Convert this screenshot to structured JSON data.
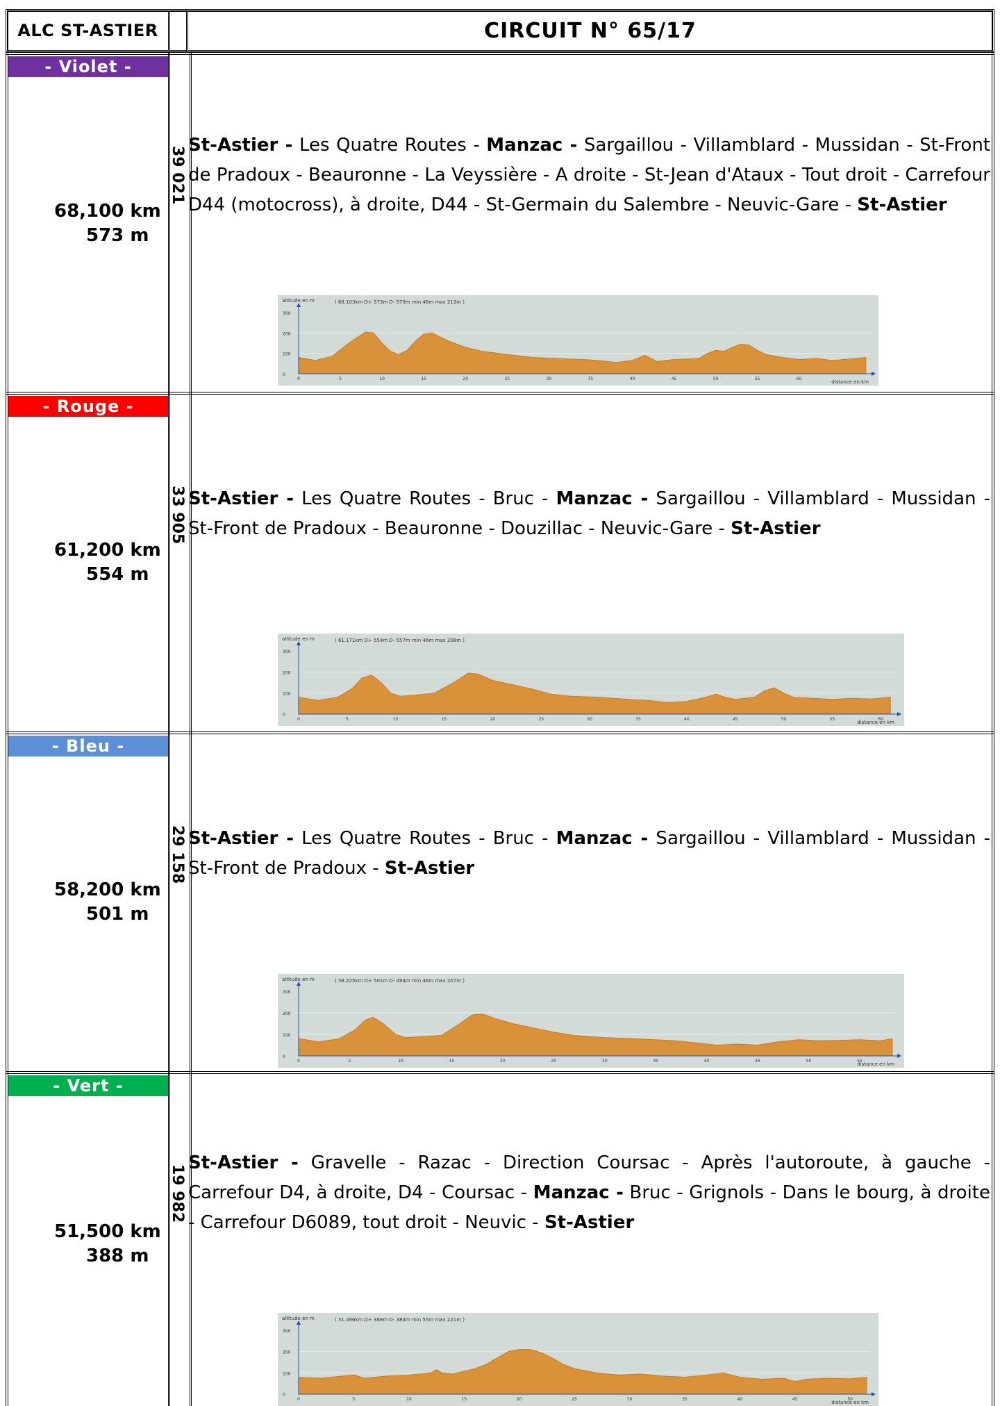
{
  "header": {
    "club": "ALC ST-ASTIER",
    "circuit": "CIRCUIT N° 65/17"
  },
  "routes": [
    {
      "color_name": "- Violet -",
      "color": "#7030a0",
      "distance": "68,100 km",
      "elevation": "573 m",
      "code": "39 021",
      "parts": [
        {
          "t": "St-Astier -",
          "b": true
        },
        {
          "t": " Les Quatre Routes - ",
          "b": false
        },
        {
          "t": "Manzac -",
          "b": true
        },
        {
          "t": " Sargaillou - Villamblard - Mussidan - St-Front de Pradoux - Beauronne - La Veyssière - A droite - St-Jean d'Ataux - Tout droit - Carrefour D44 (motocross), à droite, D44 - St-Germain du Salembre - Neuvic-Gare - ",
          "b": false
        },
        {
          "t": "St-Astier",
          "b": true
        }
      ],
      "profile": {
        "stats": "( 68.103km  D+ 573m  D- 579m  min 46m  max 213m )",
        "y_label": "altitude en m",
        "x_label": "distance en km",
        "y_ticks": [
          "300",
          "200",
          "100",
          "0"
        ],
        "x_ticks": [
          "0",
          "5",
          "10",
          "15",
          "20",
          "25",
          "30",
          "35",
          "40",
          "45",
          "50",
          "55",
          "60"
        ],
        "total_km": 68.1,
        "points": [
          [
            0,
            80
          ],
          [
            2,
            65
          ],
          [
            4,
            85
          ],
          [
            6,
            150
          ],
          [
            8,
            205
          ],
          [
            9,
            200
          ],
          [
            10,
            150
          ],
          [
            11,
            110
          ],
          [
            12,
            95
          ],
          [
            13,
            115
          ],
          [
            14,
            160
          ],
          [
            15,
            195
          ],
          [
            16,
            200
          ],
          [
            18,
            160
          ],
          [
            20,
            130
          ],
          [
            22,
            110
          ],
          [
            25,
            95
          ],
          [
            28,
            80
          ],
          [
            31,
            75
          ],
          [
            34,
            70
          ],
          [
            36,
            65
          ],
          [
            38,
            55
          ],
          [
            40,
            65
          ],
          [
            41.5,
            90
          ],
          [
            43,
            60
          ],
          [
            45,
            70
          ],
          [
            48,
            75
          ],
          [
            49,
            100
          ],
          [
            50,
            115
          ],
          [
            51,
            110
          ],
          [
            52,
            130
          ],
          [
            53,
            145
          ],
          [
            54,
            140
          ],
          [
            55,
            115
          ],
          [
            56,
            95
          ],
          [
            58,
            80
          ],
          [
            60,
            70
          ],
          [
            62,
            75
          ],
          [
            64,
            65
          ],
          [
            66,
            72
          ],
          [
            68,
            80
          ]
        ]
      }
    },
    {
      "color_name": "- Rouge -",
      "color": "#ff0000",
      "distance": "61,200 km",
      "elevation": "554 m",
      "code": "33 905",
      "parts": [
        {
          "t": "St-Astier -",
          "b": true
        },
        {
          "t": " Les Quatre Routes - Bruc - ",
          "b": false
        },
        {
          "t": "Manzac -",
          "b": true
        },
        {
          "t": " Sargaillou - Villamblard - Mussidan - St-Front de Pradoux - Beauronne - Douzillac - Neuvic-Gare - ",
          "b": false
        },
        {
          "t": "St-Astier",
          "b": true
        }
      ],
      "profile": {
        "stats": "( 61.171km  D+ 554m  D- 557m  min 46m  max 208m )",
        "y_label": "altitude en m",
        "x_label": "distance en km",
        "y_ticks": [
          "300",
          "200",
          "100",
          "0"
        ],
        "x_ticks": [
          "0",
          "5",
          "10",
          "15",
          "20",
          "25",
          "30",
          "35",
          "40",
          "45",
          "50",
          "55",
          "60"
        ],
        "total_km": 61.2,
        "points": [
          [
            0,
            80
          ],
          [
            2,
            65
          ],
          [
            4,
            80
          ],
          [
            5.5,
            120
          ],
          [
            6.5,
            170
          ],
          [
            7.5,
            185
          ],
          [
            8.5,
            150
          ],
          [
            9.5,
            100
          ],
          [
            10.5,
            85
          ],
          [
            12,
            90
          ],
          [
            14,
            100
          ],
          [
            16,
            150
          ],
          [
            17.5,
            195
          ],
          [
            18.5,
            190
          ],
          [
            20,
            160
          ],
          [
            22,
            140
          ],
          [
            24,
            120
          ],
          [
            26,
            95
          ],
          [
            28,
            85
          ],
          [
            31,
            80
          ],
          [
            34,
            70
          ],
          [
            36,
            65
          ],
          [
            38,
            55
          ],
          [
            40,
            60
          ],
          [
            42,
            80
          ],
          [
            43,
            95
          ],
          [
            44,
            80
          ],
          [
            45,
            70
          ],
          [
            47,
            80
          ],
          [
            48,
            110
          ],
          [
            49,
            125
          ],
          [
            50,
            100
          ],
          [
            51,
            80
          ],
          [
            53,
            75
          ],
          [
            55,
            70
          ],
          [
            57,
            75
          ],
          [
            59,
            72
          ],
          [
            61,
            80
          ]
        ]
      }
    },
    {
      "color_name": "- Bleu -",
      "color": "#5b8fd6",
      "distance": "58,200 km",
      "elevation": "501 m",
      "code": "29 158",
      "parts": [
        {
          "t": "St-Astier -",
          "b": true
        },
        {
          "t": " Les Quatre Routes - Bruc - ",
          "b": false
        },
        {
          "t": "Manzac -",
          "b": true
        },
        {
          "t": " Sargaillou - Villamblard - Mussidan - St-Front de Pradoux - ",
          "b": false
        },
        {
          "t": "St-Astier",
          "b": true
        }
      ],
      "profile": {
        "stats": "( 58.225km  D+ 501m  D- 494m  min 46m  max 207m )",
        "y_label": "altitude en m",
        "x_label": "distance en km",
        "y_ticks": [
          "300",
          "200",
          "100",
          "0"
        ],
        "x_ticks": [
          "0",
          "5",
          "10",
          "15",
          "20",
          "25",
          "30",
          "35",
          "40",
          "45",
          "50",
          "55"
        ],
        "total_km": 58.2,
        "points": [
          [
            0,
            80
          ],
          [
            2,
            65
          ],
          [
            4,
            80
          ],
          [
            5.5,
            120
          ],
          [
            6.5,
            165
          ],
          [
            7.3,
            180
          ],
          [
            8.3,
            150
          ],
          [
            9.5,
            100
          ],
          [
            10.5,
            85
          ],
          [
            12,
            90
          ],
          [
            14,
            95
          ],
          [
            15.5,
            140
          ],
          [
            17,
            190
          ],
          [
            18,
            195
          ],
          [
            19.5,
            170
          ],
          [
            21,
            150
          ],
          [
            23,
            130
          ],
          [
            25,
            110
          ],
          [
            27,
            95
          ],
          [
            30,
            85
          ],
          [
            33,
            80
          ],
          [
            35,
            75
          ],
          [
            37,
            70
          ],
          [
            39,
            60
          ],
          [
            41,
            50
          ],
          [
            43,
            55
          ],
          [
            45,
            50
          ],
          [
            47,
            65
          ],
          [
            49,
            75
          ],
          [
            51,
            70
          ],
          [
            53,
            72
          ],
          [
            55,
            75
          ],
          [
            57,
            70
          ],
          [
            58.2,
            80
          ]
        ]
      }
    },
    {
      "color_name": "- Vert -",
      "color": "#00b050",
      "distance": "51,500 km",
      "elevation": "388 m",
      "code": "19 982",
      "parts": [
        {
          "t": "St-Astier -",
          "b": true
        },
        {
          "t": " Gravelle - Razac - Direction Coursac - Après l'autoroute, à gauche - Carrefour D4, à droite, D4 - Coursac - ",
          "b": false
        },
        {
          "t": "Manzac -",
          "b": true
        },
        {
          "t": " Bruc - Grignols - Dans le bourg, à droite - Carrefour D6089, tout droit - Neuvic - ",
          "b": false
        },
        {
          "t": "St-Astier",
          "b": true
        }
      ],
      "profile": {
        "stats": "( 51.496km  D+ 388m  D- 384m  min 55m  max 221m )",
        "y_label": "altitude en m",
        "x_label": "distance en km",
        "y_ticks": [
          "300",
          "200",
          "100",
          "0"
        ],
        "x_ticks": [
          "0",
          "5",
          "10",
          "15",
          "20",
          "25",
          "30",
          "35",
          "40",
          "45",
          "50"
        ],
        "total_km": 51.5,
        "points": [
          [
            0,
            80
          ],
          [
            2,
            75
          ],
          [
            4,
            85
          ],
          [
            5,
            90
          ],
          [
            6,
            75
          ],
          [
            8,
            85
          ],
          [
            10,
            90
          ],
          [
            12,
            100
          ],
          [
            12.5,
            115
          ],
          [
            13,
            100
          ],
          [
            14,
            95
          ],
          [
            16,
            120
          ],
          [
            17,
            140
          ],
          [
            18,
            170
          ],
          [
            19,
            200
          ],
          [
            20,
            210
          ],
          [
            21,
            210
          ],
          [
            22,
            195
          ],
          [
            23,
            170
          ],
          [
            24,
            140
          ],
          [
            25,
            120
          ],
          [
            27,
            100
          ],
          [
            29,
            90
          ],
          [
            31,
            95
          ],
          [
            33,
            85
          ],
          [
            35,
            80
          ],
          [
            37,
            90
          ],
          [
            38.5,
            100
          ],
          [
            40,
            80
          ],
          [
            42,
            70
          ],
          [
            44,
            75
          ],
          [
            45,
            60
          ],
          [
            46,
            70
          ],
          [
            48,
            75
          ],
          [
            50,
            72
          ],
          [
            51.5,
            80
          ]
        ]
      }
    }
  ]
}
